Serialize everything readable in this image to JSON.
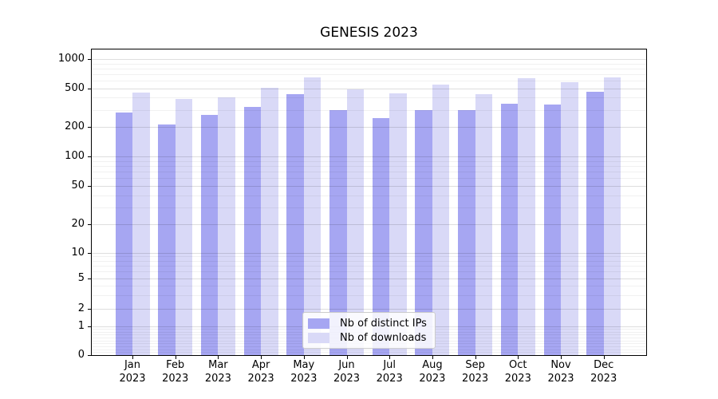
{
  "chart_data": {
    "type": "bar",
    "title": "GENESIS 2023",
    "months": [
      "Jan",
      "Feb",
      "Mar",
      "Apr",
      "May",
      "Jun",
      "Jul",
      "Aug",
      "Sep",
      "Oct",
      "Nov",
      "Dec"
    ],
    "year": "2023",
    "categories": [
      "Jan 2023",
      "Feb 2023",
      "Mar 2023",
      "Apr 2023",
      "May 2023",
      "Jun 2023",
      "Jul 2023",
      "Aug 2023",
      "Sep 2023",
      "Oct 2023",
      "Nov 2023",
      "Dec 2023"
    ],
    "series": [
      {
        "name": "Nb of distinct IPs",
        "color": "#a6a6f2",
        "values": [
          280,
          210,
          265,
          320,
          430,
          300,
          245,
          300,
          295,
          345,
          340,
          460
        ]
      },
      {
        "name": "Nb of downloads",
        "color": "#d9d9f7",
        "values": [
          450,
          390,
          400,
          505,
          650,
          490,
          445,
          540,
          430,
          640,
          580,
          650
        ]
      }
    ],
    "yscale": "symlog",
    "yticks": [
      0,
      1,
      2,
      5,
      10,
      20,
      50,
      100,
      200,
      500,
      1000
    ],
    "ylim": [
      0,
      1250
    ],
    "xlabel": "",
    "ylabel": "",
    "grid": true,
    "legend_position": "lower center"
  }
}
